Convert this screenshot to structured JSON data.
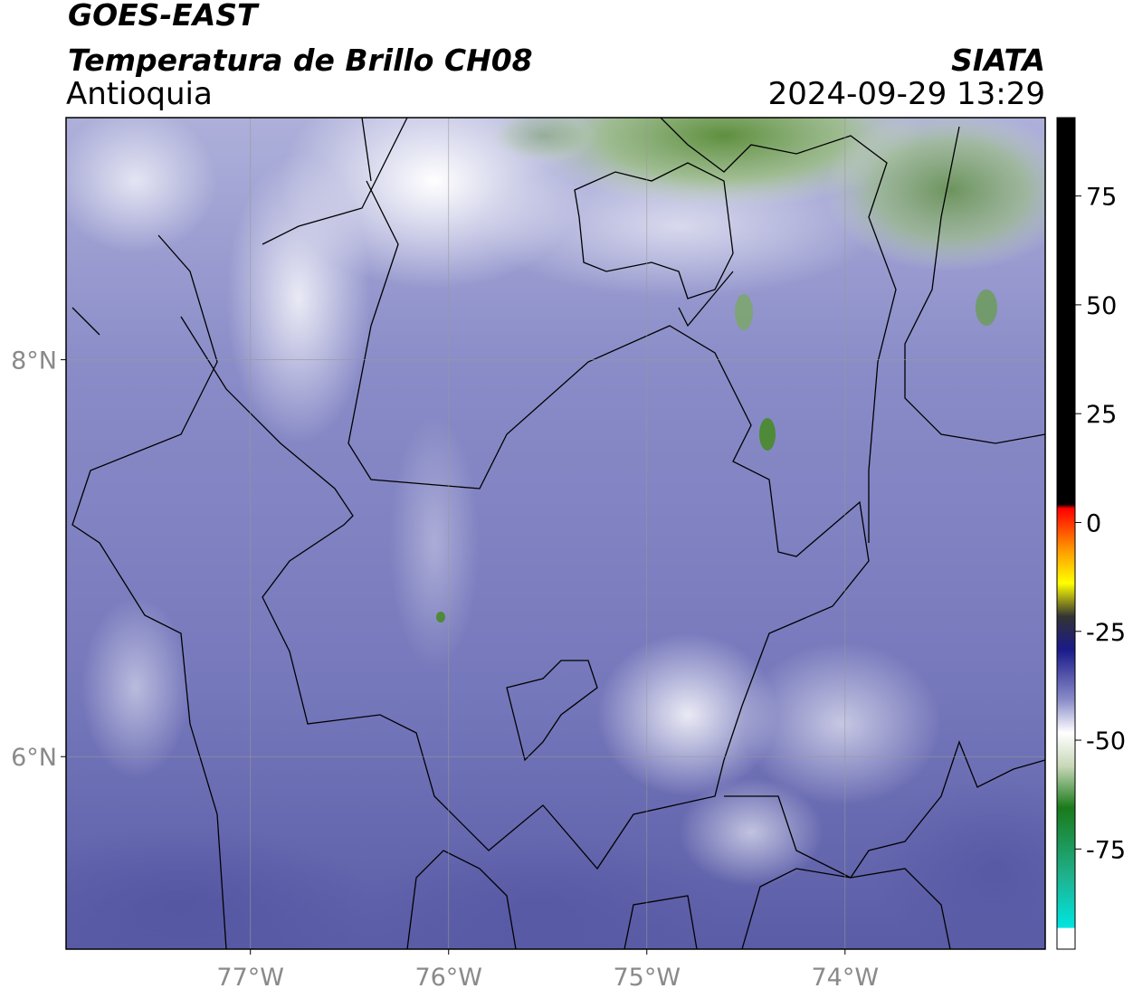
{
  "header": {
    "satellite": "GOES-EAST",
    "product": "Temperatura de Brillo CH08",
    "region": "Antioquia",
    "source": "SIATA",
    "datetime": "2024-09-29 13:29"
  },
  "map": {
    "xlim": [
      -77.93,
      -72.99
    ],
    "ylim": [
      5.03,
      9.22
    ],
    "xticks": [
      {
        "value": -77,
        "label": "77°W"
      },
      {
        "value": -76,
        "label": "76°W"
      },
      {
        "value": -75,
        "label": "75°W"
      },
      {
        "value": -74,
        "label": "74°W"
      }
    ],
    "yticks": [
      {
        "value": 8,
        "label": "8°N"
      },
      {
        "value": 6,
        "label": "6°N"
      }
    ],
    "grid": true
  },
  "colorbar": {
    "lim": [
      -98,
      93
    ],
    "ticks": [
      75,
      50,
      25,
      0,
      -25,
      -50,
      -75
    ]
  }
}
